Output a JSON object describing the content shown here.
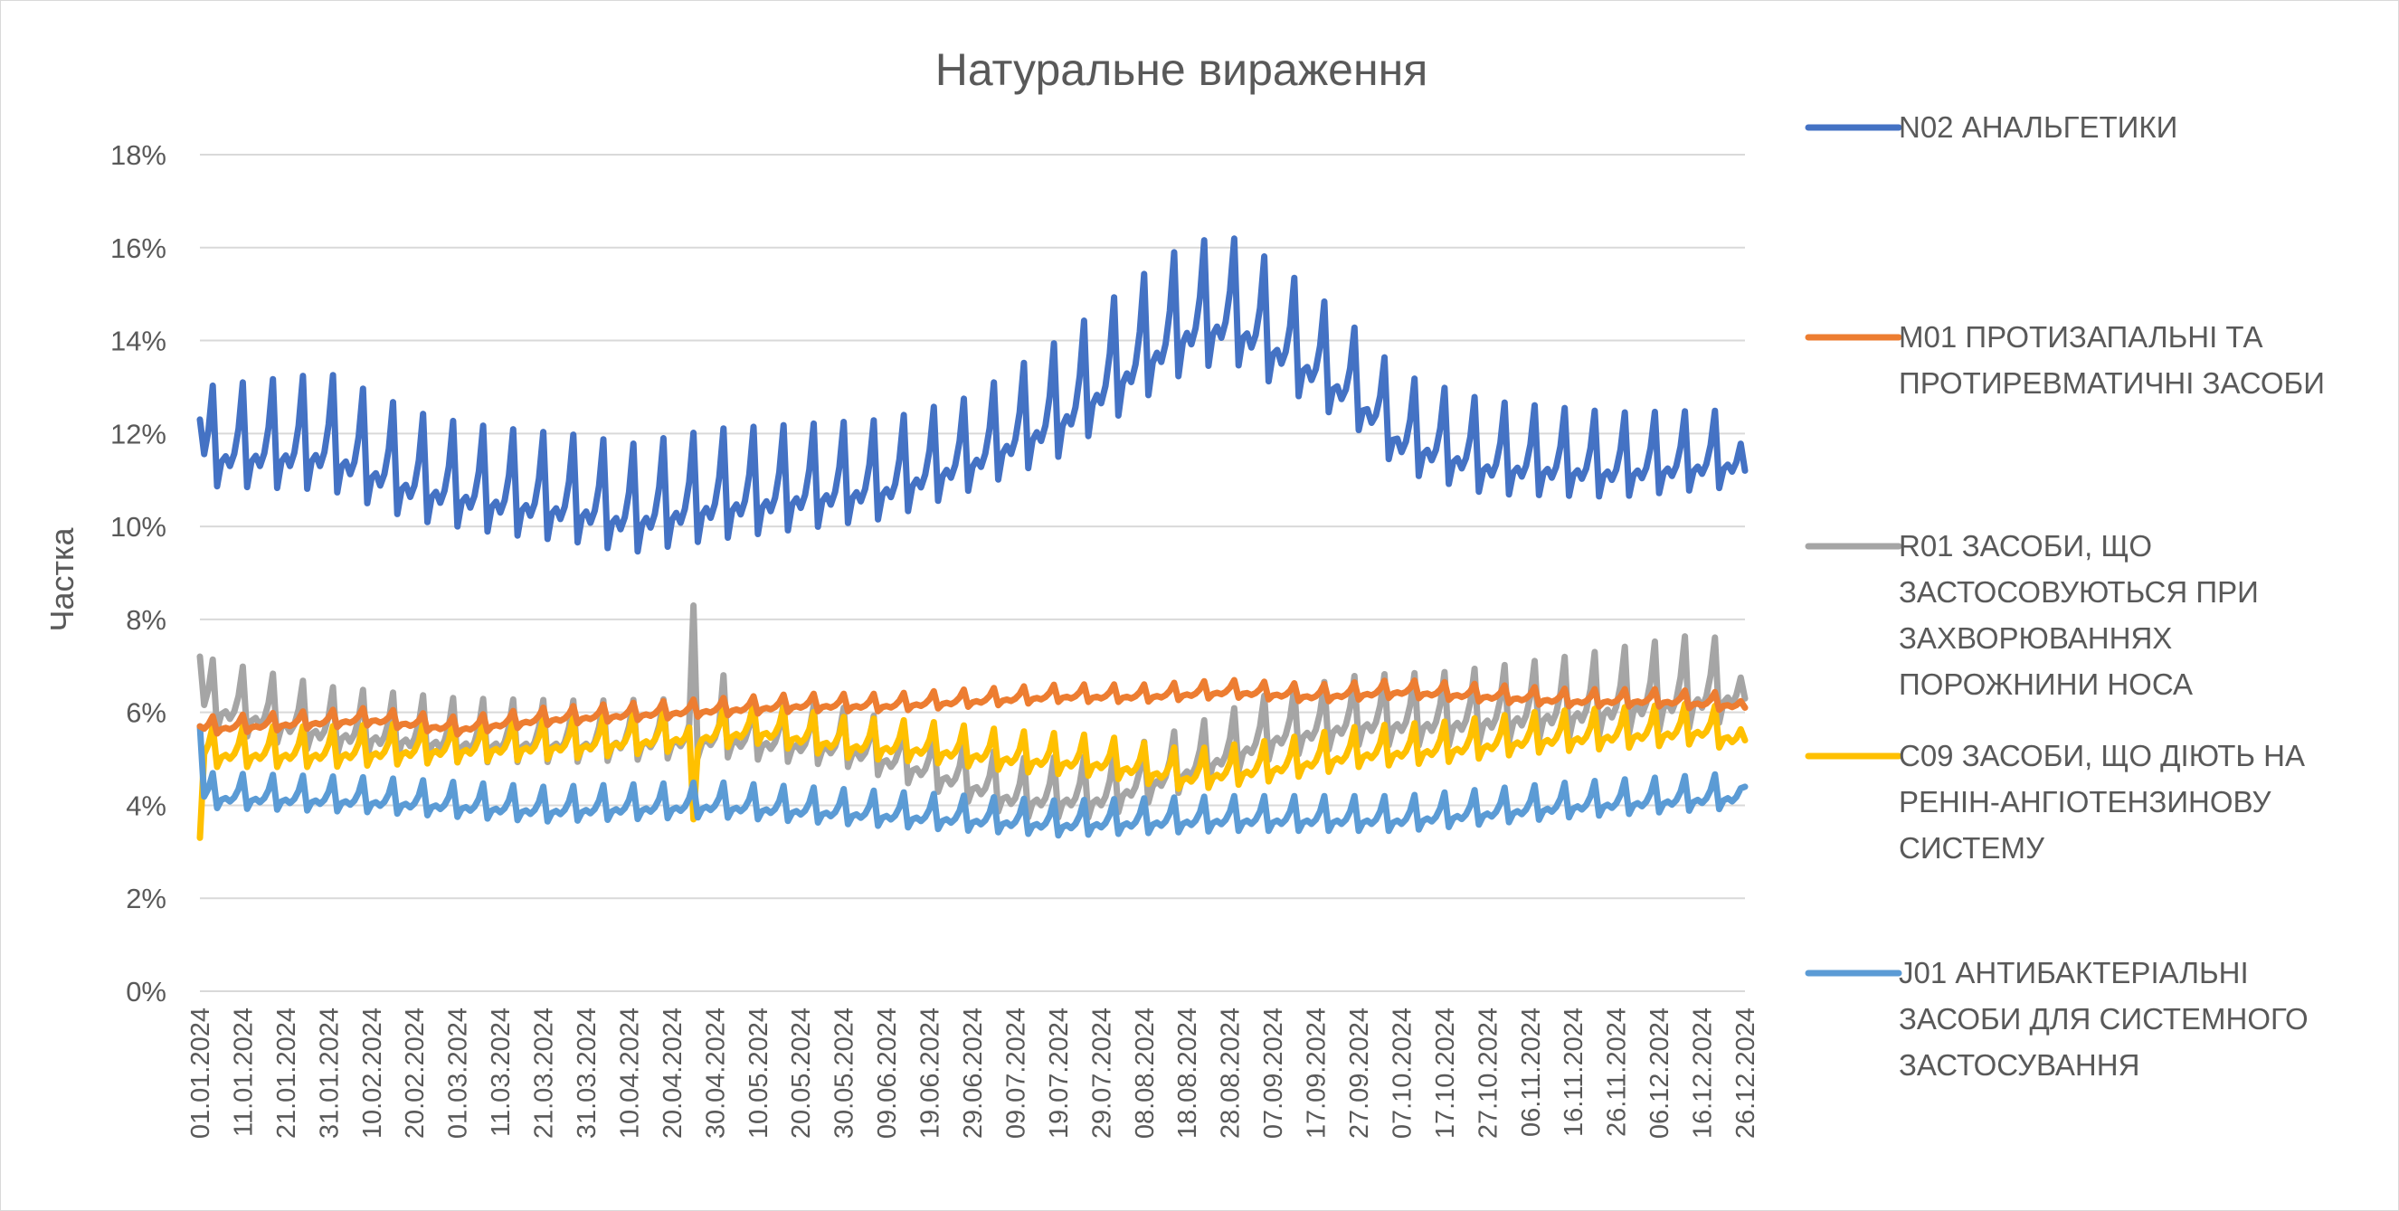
{
  "chart_data": {
    "type": "line",
    "title": "Натуральне вираження",
    "ylabel": "Частка",
    "xlabel": "",
    "ylim": [
      0,
      0.18
    ],
    "y_ticks": [
      "0%",
      "2%",
      "4%",
      "6%",
      "8%",
      "10%",
      "12%",
      "14%",
      "16%",
      "18%"
    ],
    "grid": true,
    "legend_position": "right",
    "x_tick_labels": [
      "01.01.2024",
      "11.01.2024",
      "21.01.2024",
      "31.01.2024",
      "10.02.2024",
      "20.02.2024",
      "01.03.2024",
      "11.03.2024",
      "21.03.2024",
      "31.03.2024",
      "10.04.2024",
      "20.04.2024",
      "30.04.2024",
      "10.05.2024",
      "20.05.2024",
      "30.05.2024",
      "09.06.2024",
      "19.06.2024",
      "29.06.2024",
      "09.07.2024",
      "19.07.2024",
      "29.07.2024",
      "08.08.2024",
      "18.08.2024",
      "28.08.2024",
      "07.09.2024",
      "17.09.2024",
      "27.09.2024",
      "07.10.2024",
      "17.10.2024",
      "27.10.2024",
      "06.11.2024",
      "16.11.2024",
      "26.11.2024",
      "06.12.2024",
      "16.12.2024",
      "26.12.2024"
    ],
    "x_point_count": 361,
    "weekly_period_days": 7,
    "series": [
      {
        "name": "N02 АНАЛЬГЕТИКИ",
        "color": "#4472C4",
        "baseline_anchors": [
          [
            0,
            0.113
          ],
          [
            30,
            0.113
          ],
          [
            50,
            0.106
          ],
          [
            70,
            0.103
          ],
          [
            90,
            0.101
          ],
          [
            100,
            0.099
          ],
          [
            120,
            0.102
          ],
          [
            140,
            0.104
          ],
          [
            160,
            0.106
          ],
          [
            180,
            0.112
          ],
          [
            200,
            0.12
          ],
          [
            220,
            0.133
          ],
          [
            230,
            0.139
          ],
          [
            240,
            0.141
          ],
          [
            260,
            0.131
          ],
          [
            270,
            0.125
          ],
          [
            280,
            0.116
          ],
          [
            300,
            0.111
          ],
          [
            330,
            0.11
          ],
          [
            360,
            0.112
          ]
        ],
        "weekly_peak_amp": [
          [
            0,
            0.017
          ],
          [
            30,
            0.02
          ],
          [
            60,
            0.018
          ],
          [
            120,
            0.019
          ],
          [
            180,
            0.016
          ],
          [
            200,
            0.02
          ],
          [
            230,
            0.022
          ],
          [
            250,
            0.021
          ],
          [
            270,
            0.017
          ],
          [
            300,
            0.016
          ],
          [
            360,
            0.013
          ]
        ],
        "start_value": 0.123,
        "end_value": 0.112
      },
      {
        "name": "M01 ПРОТИЗАПАЛЬНІ ТА ПРОТИРЕВМАТИЧНІ ЗАСОБИ",
        "color": "#ED7D31",
        "baseline_anchors": [
          [
            0,
            0.056
          ],
          [
            20,
            0.057
          ],
          [
            40,
            0.058
          ],
          [
            60,
            0.056
          ],
          [
            80,
            0.058
          ],
          [
            100,
            0.059
          ],
          [
            120,
            0.06
          ],
          [
            140,
            0.061
          ],
          [
            160,
            0.061
          ],
          [
            180,
            0.062
          ],
          [
            200,
            0.063
          ],
          [
            220,
            0.063
          ],
          [
            240,
            0.064
          ],
          [
            260,
            0.063
          ],
          [
            280,
            0.064
          ],
          [
            300,
            0.063
          ],
          [
            320,
            0.062
          ],
          [
            340,
            0.062
          ],
          [
            360,
            0.061
          ]
        ],
        "weekly_peak_amp": [
          [
            0,
            0.003
          ],
          [
            360,
            0.003
          ]
        ],
        "start_value": 0.057,
        "end_value": 0.061
      },
      {
        "name": "R01 ЗАСОБИ, ЩО ЗАСТОСОВУЮТЬСЯ ПРИ ЗАХВОРЮВАННЯХ ПОРОЖНИНИ НОСА",
        "color": "#A5A5A5",
        "baseline_anchors": [
          [
            0,
            0.06
          ],
          [
            30,
            0.054
          ],
          [
            60,
            0.052
          ],
          [
            90,
            0.052
          ],
          [
            120,
            0.053
          ],
          [
            150,
            0.051
          ],
          [
            170,
            0.046
          ],
          [
            190,
            0.04
          ],
          [
            210,
            0.04
          ],
          [
            230,
            0.046
          ],
          [
            250,
            0.053
          ],
          [
            270,
            0.056
          ],
          [
            290,
            0.056
          ],
          [
            320,
            0.058
          ],
          [
            340,
            0.06
          ],
          [
            360,
            0.062
          ]
        ],
        "weekly_peak_amp": [
          [
            0,
            0.012
          ],
          [
            60,
            0.011
          ],
          [
            120,
            0.01
          ],
          [
            180,
            0.01
          ],
          [
            240,
            0.011
          ],
          [
            300,
            0.013
          ],
          [
            350,
            0.016
          ],
          [
            360,
            0.012
          ]
        ],
        "start_value": 0.072,
        "end_value": 0.063,
        "spikes": [
          [
            115,
            0.083
          ],
          [
            122,
            0.068
          ]
        ]
      },
      {
        "name": "C09 ЗАСОБИ, ЩО ДІЮТЬ НА РЕНІН-АНГІОТЕНЗИНОВУ СИСТЕМУ",
        "color": "#FFC000",
        "baseline_anchors": [
          [
            0,
            0.05
          ],
          [
            30,
            0.05
          ],
          [
            60,
            0.051
          ],
          [
            90,
            0.052
          ],
          [
            120,
            0.054
          ],
          [
            130,
            0.055
          ],
          [
            150,
            0.052
          ],
          [
            170,
            0.051
          ],
          [
            190,
            0.049
          ],
          [
            210,
            0.048
          ],
          [
            230,
            0.045
          ],
          [
            250,
            0.047
          ],
          [
            270,
            0.05
          ],
          [
            290,
            0.051
          ],
          [
            310,
            0.053
          ],
          [
            330,
            0.054
          ],
          [
            350,
            0.055
          ],
          [
            360,
            0.053
          ]
        ],
        "weekly_peak_amp": [
          [
            0,
            0.007
          ],
          [
            360,
            0.007
          ]
        ],
        "start_value": 0.033,
        "end_value": 0.054,
        "spikes": [
          [
            115,
            0.037
          ]
        ]
      },
      {
        "name": "J01 АНТИБАКТЕРІАЛЬНІ ЗАСОБИ ДЛЯ СИСТЕМНОГО ЗАСТОСУВАННЯ",
        "color": "#5B9BD5",
        "baseline_anchors": [
          [
            0,
            0.041
          ],
          [
            40,
            0.04
          ],
          [
            80,
            0.038
          ],
          [
            120,
            0.039
          ],
          [
            160,
            0.037
          ],
          [
            200,
            0.035
          ],
          [
            240,
            0.036
          ],
          [
            280,
            0.036
          ],
          [
            320,
            0.039
          ],
          [
            360,
            0.041
          ]
        ],
        "weekly_peak_amp": [
          [
            0,
            0.006
          ],
          [
            360,
            0.006
          ]
        ],
        "start_value": 0.057,
        "end_value": 0.044
      }
    ]
  }
}
